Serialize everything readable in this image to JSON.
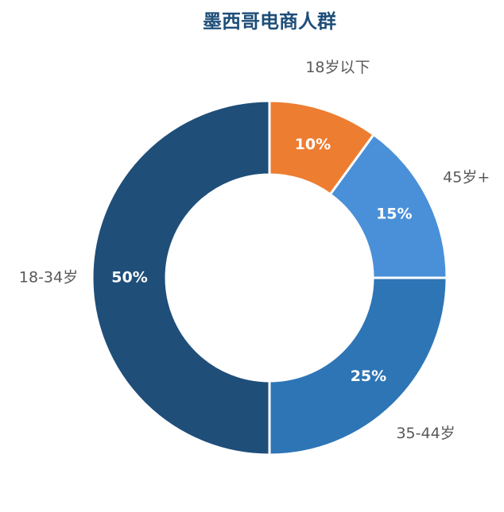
{
  "chart_data": {
    "type": "donut",
    "title": "墨西哥电商人群",
    "categories": [
      "18岁以下",
      "45岁+",
      "35-44岁",
      "18-34岁"
    ],
    "values": [
      10,
      15,
      25,
      50
    ],
    "value_labels": [
      "10%",
      "15%",
      "25%",
      "50%"
    ],
    "colors": [
      "#ed7d31",
      "#4a90d9",
      "#2e75b6",
      "#1f4e79"
    ]
  }
}
